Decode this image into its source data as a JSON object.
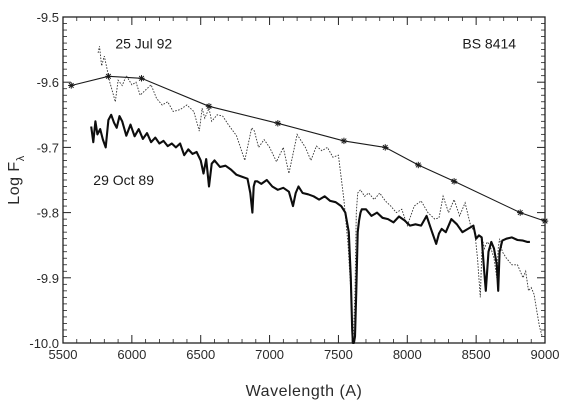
{
  "chart_data": {
    "type": "line",
    "xlabel": "Wavelength (A)",
    "ylabel": "Log F",
    "ylabel_subscript": "λ",
    "xlim": [
      5500,
      9000
    ],
    "ylim": [
      -10.0,
      -9.5
    ],
    "x_ticks": [
      5500,
      6000,
      6500,
      7000,
      7500,
      8000,
      8500,
      9000
    ],
    "x_tick_labels": [
      "5500",
      "6000",
      "6500",
      "7000",
      "7500",
      "8000",
      "8500",
      "9000"
    ],
    "y_ticks": [
      -9.5,
      -9.6,
      -9.7,
      -9.8,
      -9.9,
      -10.0
    ],
    "y_tick_labels": [
      "-9.5",
      "-9.6",
      "-9.7",
      "-9.8",
      "-9.9",
      "-10.0"
    ],
    "grid": false,
    "annotations": [
      {
        "text": "25 Jul 92",
        "x": 5880,
        "y": -9.548
      },
      {
        "text": "BS 8414",
        "x": 8400,
        "y": -9.548
      },
      {
        "text": "29 Oct 89",
        "x": 5720,
        "y": -9.758
      }
    ],
    "series": [
      {
        "style": "line-with-star-markers",
        "x": [
          5560,
          5830,
          6070,
          6560,
          7060,
          7540,
          7840,
          8080,
          8340,
          8820,
          9000
        ],
        "y": [
          -9.605,
          -9.591,
          -9.594,
          -9.637,
          -9.663,
          -9.69,
          -9.7,
          -9.727,
          -9.752,
          -9.8,
          -9.813
        ]
      },
      {
        "style": "dashed",
        "x": [
          5755,
          5765,
          5780,
          5800,
          5820,
          5840,
          5860,
          5880,
          5900,
          5930,
          5960,
          6000,
          6030,
          6060,
          6100,
          6140,
          6180,
          6220,
          6260,
          6300,
          6350,
          6400,
          6450,
          6490,
          6510,
          6530,
          6560,
          6580,
          6620,
          6660,
          6700,
          6760,
          6820,
          6850,
          6870,
          6890,
          6920,
          6960,
          7000,
          7050,
          7100,
          7140,
          7180,
          7200,
          7230,
          7260,
          7300,
          7340,
          7380,
          7420,
          7460,
          7500,
          7540,
          7570,
          7590,
          7600,
          7605,
          7610,
          7620,
          7630,
          7640,
          7660,
          7690,
          7720,
          7760,
          7800,
          7840,
          7880,
          7920,
          7960,
          8000,
          8050,
          8100,
          8150,
          8200,
          8230,
          8260,
          8300,
          8340,
          8380,
          8420,
          8460,
          8490,
          8510,
          8530,
          8545,
          8560,
          8580,
          8600,
          8630,
          8650,
          8660,
          8670,
          8690,
          8720,
          8760,
          8800,
          8840,
          8860,
          8880,
          8900,
          8920,
          8940,
          8960,
          8980
        ],
        "y": [
          -9.555,
          -9.545,
          -9.575,
          -9.56,
          -9.58,
          -9.6,
          -9.615,
          -9.63,
          -9.597,
          -9.605,
          -9.59,
          -9.604,
          -9.6,
          -9.62,
          -9.612,
          -9.604,
          -9.625,
          -9.635,
          -9.63,
          -9.645,
          -9.642,
          -9.635,
          -9.645,
          -9.675,
          -9.64,
          -9.655,
          -9.64,
          -9.66,
          -9.65,
          -9.652,
          -9.665,
          -9.682,
          -9.72,
          -9.69,
          -9.67,
          -9.675,
          -9.7,
          -9.688,
          -9.7,
          -9.722,
          -9.7,
          -9.74,
          -9.7,
          -9.68,
          -9.69,
          -9.7,
          -9.72,
          -9.698,
          -9.705,
          -9.7,
          -9.715,
          -9.712,
          -9.78,
          -9.85,
          -9.92,
          -9.99,
          -10.0,
          -9.98,
          -9.92,
          -9.8,
          -9.77,
          -9.765,
          -9.775,
          -9.77,
          -9.78,
          -9.77,
          -9.782,
          -9.79,
          -9.8,
          -9.795,
          -9.82,
          -9.79,
          -9.782,
          -9.8,
          -9.81,
          -9.808,
          -9.775,
          -9.8,
          -9.78,
          -9.805,
          -9.785,
          -9.82,
          -9.83,
          -9.87,
          -9.93,
          -9.84,
          -9.855,
          -9.845,
          -9.85,
          -9.87,
          -9.9,
          -9.855,
          -9.84,
          -9.86,
          -9.87,
          -9.88,
          -9.88,
          -9.9,
          -9.89,
          -9.92,
          -9.915,
          -9.925,
          -9.95,
          -9.975,
          -9.99
        ]
      },
      {
        "style": "solid-thick",
        "x": [
          5705,
          5720,
          5735,
          5750,
          5770,
          5790,
          5810,
          5830,
          5850,
          5870,
          5890,
          5910,
          5930,
          5960,
          5990,
          6020,
          6050,
          6080,
          6110,
          6140,
          6170,
          6200,
          6230,
          6260,
          6290,
          6320,
          6350,
          6380,
          6410,
          6440,
          6470,
          6500,
          6520,
          6540,
          6560,
          6580,
          6600,
          6640,
          6680,
          6720,
          6760,
          6800,
          6840,
          6860,
          6875,
          6885,
          6895,
          6910,
          6940,
          6980,
          7020,
          7060,
          7100,
          7140,
          7170,
          7190,
          7210,
          7240,
          7280,
          7320,
          7360,
          7400,
          7440,
          7480,
          7520,
          7550,
          7575,
          7590,
          7600,
          7605,
          7612,
          7620,
          7630,
          7640,
          7650,
          7660,
          7670,
          7700,
          7740,
          7780,
          7820,
          7860,
          7900,
          7940,
          7980,
          8020,
          8060,
          8100,
          8140,
          8180,
          8210,
          8230,
          8250,
          8280,
          8320,
          8360,
          8400,
          8440,
          8480,
          8500,
          8520,
          8540,
          8555,
          8570,
          8590,
          8610,
          8630,
          8650,
          8660,
          8670,
          8690,
          8720,
          8760,
          8800,
          8840,
          8870,
          8890
        ],
        "y": [
          -9.668,
          -9.692,
          -9.66,
          -9.68,
          -9.672,
          -9.688,
          -9.7,
          -9.658,
          -9.65,
          -9.662,
          -9.67,
          -9.652,
          -9.66,
          -9.682,
          -9.665,
          -9.683,
          -9.672,
          -9.687,
          -9.678,
          -9.692,
          -9.685,
          -9.694,
          -9.69,
          -9.698,
          -9.694,
          -9.7,
          -9.694,
          -9.712,
          -9.703,
          -9.71,
          -9.707,
          -9.72,
          -9.74,
          -9.718,
          -9.76,
          -9.725,
          -9.72,
          -9.73,
          -9.728,
          -9.734,
          -9.742,
          -9.745,
          -9.748,
          -9.77,
          -9.8,
          -9.76,
          -9.752,
          -9.752,
          -9.756,
          -9.75,
          -9.76,
          -9.765,
          -9.762,
          -9.768,
          -9.79,
          -9.77,
          -9.76,
          -9.77,
          -9.772,
          -9.775,
          -9.78,
          -9.775,
          -9.782,
          -9.784,
          -9.79,
          -9.8,
          -9.83,
          -9.9,
          -9.98,
          -10.0,
          -10.0,
          -9.99,
          -9.92,
          -9.83,
          -9.812,
          -9.8,
          -9.795,
          -9.795,
          -9.805,
          -9.8,
          -9.808,
          -9.81,
          -9.815,
          -9.806,
          -9.812,
          -9.82,
          -9.818,
          -9.82,
          -9.805,
          -9.83,
          -9.848,
          -9.832,
          -9.825,
          -9.83,
          -9.81,
          -9.818,
          -9.83,
          -9.825,
          -9.82,
          -9.84,
          -9.835,
          -9.838,
          -9.88,
          -9.92,
          -9.86,
          -9.845,
          -9.855,
          -9.88,
          -9.92,
          -9.86,
          -9.843,
          -9.84,
          -9.838,
          -9.842,
          -9.843,
          -9.845,
          -9.845
        ]
      }
    ]
  }
}
